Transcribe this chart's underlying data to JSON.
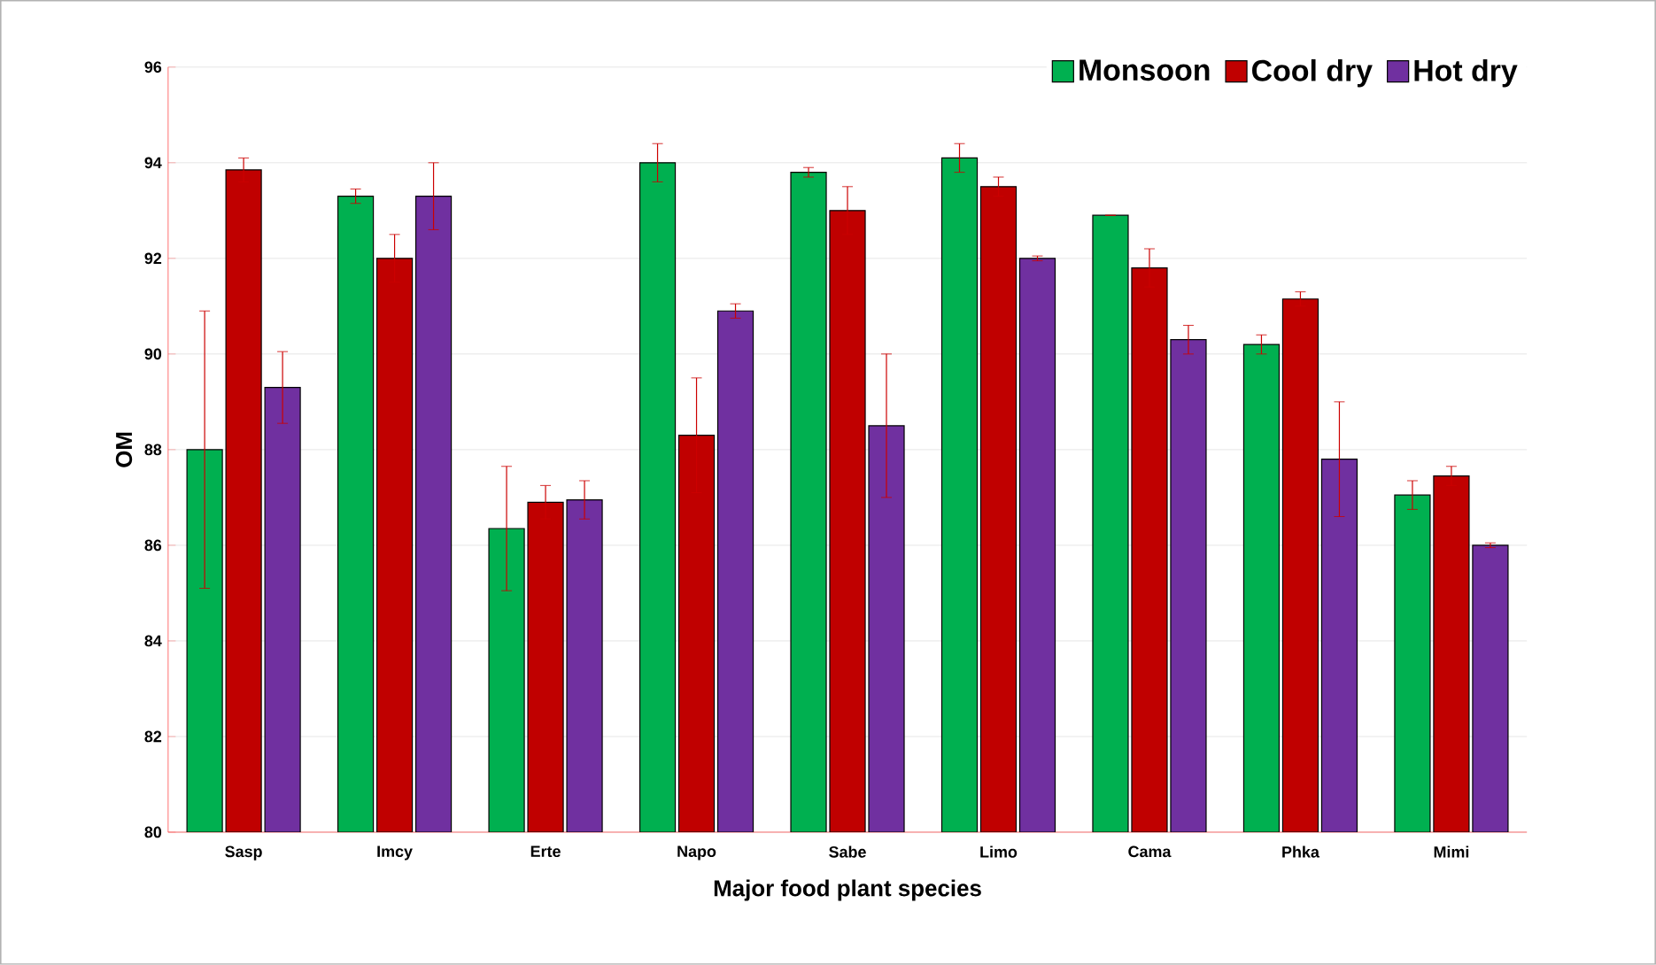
{
  "chart_data": {
    "type": "bar",
    "xlabel": "Major food plant species",
    "ylabel": "OM",
    "categories": [
      "Sasp",
      "Imcy",
      "Erte",
      "Napo",
      "Sabe",
      "Limo",
      "Cama",
      "Phka",
      "Mimi"
    ],
    "series": [
      {
        "name": "Monsoon",
        "color": "#00b050",
        "values": [
          88.0,
          93.3,
          86.35,
          94.0,
          93.8,
          94.1,
          92.9,
          90.2,
          87.05
        ],
        "errors": [
          2.9,
          0.15,
          1.3,
          0.4,
          0.1,
          0.3,
          null,
          0.2,
          0.3
        ]
      },
      {
        "name": "Cool dry",
        "color": "#c00000",
        "values": [
          93.85,
          92.0,
          86.9,
          88.3,
          93.0,
          93.5,
          91.8,
          91.15,
          87.45
        ],
        "errors": [
          0.25,
          0.5,
          0.35,
          1.2,
          0.5,
          0.2,
          0.4,
          0.15,
          0.2
        ]
      },
      {
        "name": "Hot dry",
        "color": "#7030a0",
        "values": [
          89.3,
          93.3,
          86.95,
          90.9,
          88.5,
          92.0,
          90.3,
          87.8,
          86.0
        ],
        "errors": [
          0.75,
          0.7,
          0.4,
          0.15,
          1.5,
          0.05,
          0.3,
          1.2,
          0.05
        ]
      }
    ],
    "ylim": [
      80,
      96
    ],
    "yticks": [
      80,
      82,
      84,
      86,
      88,
      90,
      92,
      94,
      96
    ],
    "grid": "y",
    "legend": "top right"
  }
}
